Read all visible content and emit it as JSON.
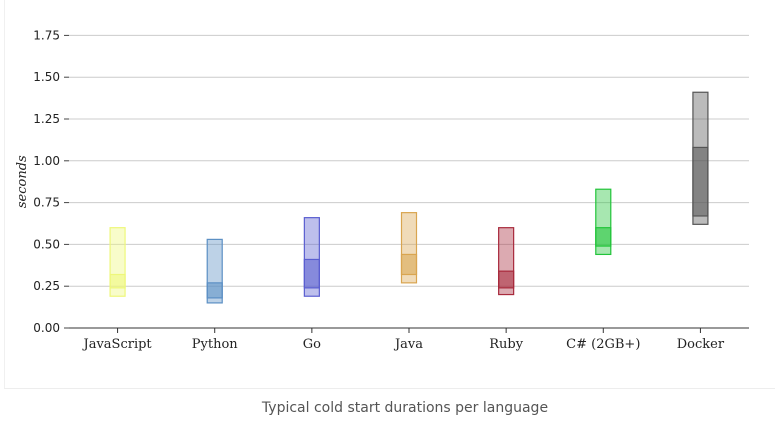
{
  "chart_data": {
    "type": "boxplot",
    "ylabel": "seconds",
    "ylim": [
      0,
      1.75
    ],
    "yticks": [
      "0.00",
      "0.25",
      "0.50",
      "0.75",
      "1.00",
      "1.25",
      "1.50",
      "1.75"
    ],
    "grid": true,
    "categories": [
      "JavaScript",
      "Python",
      "Go",
      "Java",
      "Ruby",
      "C# (2GB+)",
      "Docker"
    ],
    "series": [
      {
        "category": "JavaScript",
        "min": 0.19,
        "q1": 0.24,
        "q3": 0.32,
        "max": 0.6,
        "color": "#eef77a"
      },
      {
        "category": "Python",
        "min": 0.15,
        "q1": 0.18,
        "q3": 0.27,
        "max": 0.53,
        "color": "#5b8fc4"
      },
      {
        "category": "Go",
        "min": 0.19,
        "q1": 0.24,
        "q3": 0.41,
        "max": 0.66,
        "color": "#5a5ed0"
      },
      {
        "category": "Java",
        "min": 0.27,
        "q1": 0.32,
        "q3": 0.44,
        "max": 0.69,
        "color": "#d9a550"
      },
      {
        "category": "Ruby",
        "min": 0.2,
        "q1": 0.24,
        "q3": 0.34,
        "max": 0.6,
        "color": "#a82a3c"
      },
      {
        "category": "C# (2GB+)",
        "min": 0.44,
        "q1": 0.49,
        "q3": 0.6,
        "max": 0.83,
        "color": "#22c43a"
      },
      {
        "category": "Docker",
        "min": 0.62,
        "q1": 0.67,
        "q3": 1.08,
        "max": 1.41,
        "color": "#555555"
      }
    ]
  },
  "caption": "Typical cold start durations per language"
}
